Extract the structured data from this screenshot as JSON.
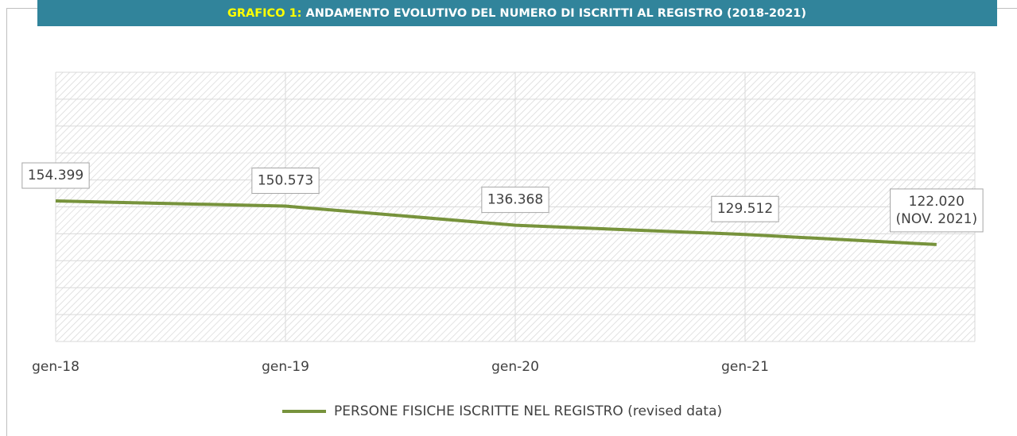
{
  "chart_data": {
    "type": "line",
    "title_prefix": "GRAFICO 1:",
    "title": "ANDAMENTO EVOLUTIVO DEL NUMERO DI ISCRITTI AL REGISTRO (2018-2021)",
    "x": [
      "2018-01",
      "2019-01",
      "2020-01",
      "2021-01",
      "2021-11"
    ],
    "xlim": [
      "2018-01",
      "2022-01"
    ],
    "xticks": [
      {
        "value": "2018-01",
        "label": "gen-18"
      },
      {
        "value": "2019-01",
        "label": "gen-19"
      },
      {
        "value": "2020-01",
        "label": "gen-20"
      },
      {
        "value": "2021-01",
        "label": "gen-21"
      }
    ],
    "ylim": [
      50000,
      250000
    ],
    "yticks": [
      50000,
      70000,
      90000,
      110000,
      130000,
      150000,
      170000,
      190000,
      210000,
      230000,
      250000
    ],
    "grid": true,
    "legend": "bottom",
    "series": [
      {
        "name": "PERSONE FISICHE ISCRITTE NEL REGISTRO (revised data)",
        "color": "#77933c",
        "values": [
          154399,
          150573,
          136368,
          129512,
          122020
        ],
        "value_labels": [
          "154.399",
          "150.573",
          "136.368",
          "129.512",
          "122.020\n(NOV. 2021)"
        ]
      }
    ]
  }
}
